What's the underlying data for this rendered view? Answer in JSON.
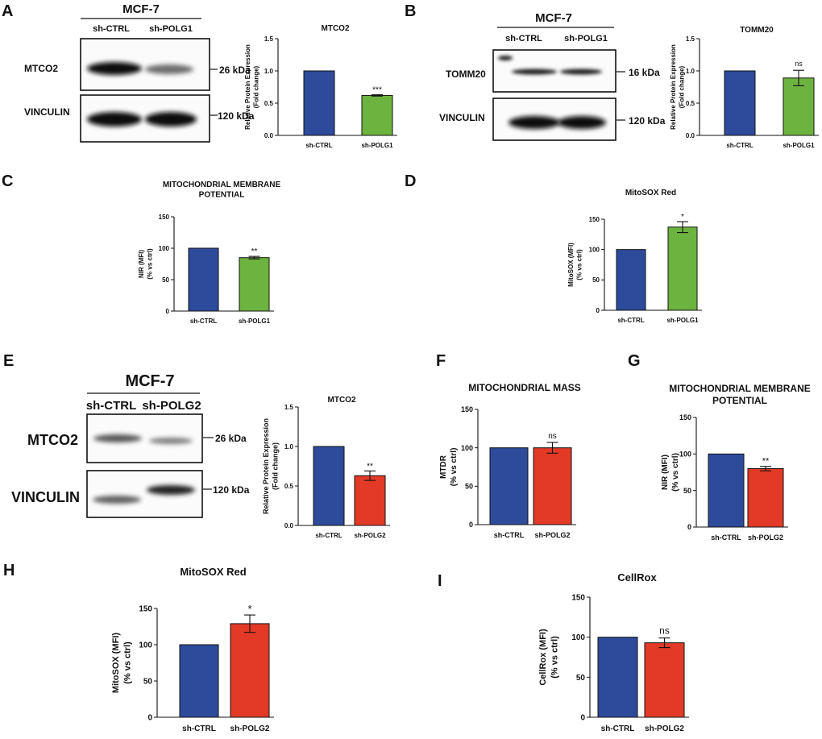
{
  "panels": {
    "A": {
      "letter": "A",
      "blot": {
        "cell_line": "MCF-7",
        "lanes": [
          "sh-CTRL",
          "sh-POLG1"
        ],
        "rows": [
          {
            "protein": "MTCO2",
            "size": "26 kDa"
          },
          {
            "protein": "VINCULIN",
            "size": "120 kDa"
          }
        ]
      }
    },
    "B": {
      "letter": "B",
      "blot": {
        "cell_line": "MCF-7",
        "lanes": [
          "sh-CTRL",
          "sh-POLG1"
        ],
        "rows": [
          {
            "protein": "TOMM20",
            "size": "16 kDa"
          },
          {
            "protein": "VINCULIN",
            "size": "120 kDa"
          }
        ]
      }
    },
    "C": {
      "letter": "C"
    },
    "D": {
      "letter": "D"
    },
    "E": {
      "letter": "E",
      "blot": {
        "cell_line": "MCF-7",
        "lanes": [
          "sh-CTRL",
          "sh-POLG2"
        ],
        "rows": [
          {
            "protein": "MTCO2",
            "size": "26 kDa"
          },
          {
            "protein": "VINCULIN",
            "size": "120 kDa"
          }
        ]
      }
    },
    "F": {
      "letter": "F"
    },
    "G": {
      "letter": "G"
    },
    "H": {
      "letter": "H"
    },
    "I": {
      "letter": "I"
    }
  },
  "colors": {
    "ctrl": "#2E4B9B",
    "polg1": "#6DB33F",
    "polg2": "#E23A26",
    "edge": "#111111"
  },
  "chart_data": [
    {
      "id": "A",
      "type": "bar",
      "title": "MTCO2",
      "ylabel": "Relative Protein Expression\n(Fold change)",
      "categories": [
        "sh-CTRL",
        "sh-POLG1"
      ],
      "values": [
        1.0,
        0.62
      ],
      "errors": [
        0,
        0.01
      ],
      "significance": [
        "",
        "***"
      ],
      "ylim": [
        0,
        1.5
      ],
      "yticks": [
        0.0,
        0.5,
        1.0,
        1.5
      ],
      "tick_labels": [
        "0.0",
        "0.5",
        "1.0",
        "1.5"
      ]
    },
    {
      "id": "B",
      "type": "bar",
      "title": "TOMM20",
      "ylabel": "Relative Protein Expression\n(Fold change)",
      "categories": [
        "sh-CTRL",
        "sh-POLG1"
      ],
      "values": [
        1.0,
        0.89
      ],
      "errors": [
        0,
        0.12
      ],
      "significance": [
        "",
        "ns"
      ],
      "ylim": [
        0,
        1.5
      ],
      "yticks": [
        0.0,
        0.5,
        1.0,
        1.5
      ],
      "tick_labels": [
        "0.0",
        "0.5",
        "1.0",
        "1.5"
      ]
    },
    {
      "id": "C",
      "type": "bar",
      "title": "MITOCHONDRIAL MEMBRANE\nPOTENTIAL",
      "ylabel": "NIR (MFI)\n(% vs ctrl)",
      "categories": [
        "sh-CTRL",
        "sh-POLG1"
      ],
      "values": [
        100,
        85
      ],
      "errors": [
        0,
        2
      ],
      "significance": [
        "",
        "**"
      ],
      "ylim": [
        0,
        150
      ],
      "yticks": [
        0,
        50,
        100,
        150
      ],
      "tick_labels": [
        "0",
        "50",
        "100",
        "150"
      ]
    },
    {
      "id": "D",
      "type": "bar",
      "title": "MitoSOX Red",
      "ylabel": "MitoSOX (MFI)\n(% vs ctrl)",
      "categories": [
        "sh-CTRL",
        "sh-POLG1"
      ],
      "values": [
        100,
        137
      ],
      "errors": [
        0,
        9
      ],
      "significance": [
        "",
        "*"
      ],
      "ylim": [
        0,
        150
      ],
      "yticks": [
        0,
        50,
        100,
        150
      ],
      "tick_labels": [
        "0",
        "50",
        "100",
        "150"
      ]
    },
    {
      "id": "E",
      "type": "bar",
      "title": "MTCO2",
      "ylabel": "Relative Protein Expression\n(Fold change)",
      "categories": [
        "sh-CTRL",
        "sh-POLG2"
      ],
      "values": [
        1.0,
        0.63
      ],
      "errors": [
        0,
        0.06
      ],
      "significance": [
        "",
        "**"
      ],
      "ylim": [
        0,
        1.5
      ],
      "yticks": [
        0.0,
        0.5,
        1.0,
        1.5
      ],
      "tick_labels": [
        "0.0",
        "0.5",
        "1.0",
        "1.5"
      ]
    },
    {
      "id": "F",
      "type": "bar",
      "title": "MITOCHONDRIAL MASS",
      "ylabel": "MTDR\n(% vs ctrl)",
      "categories": [
        "sh-CTRL",
        "sh-POLG2"
      ],
      "values": [
        100,
        100
      ],
      "errors": [
        0,
        7
      ],
      "significance": [
        "",
        "ns"
      ],
      "ylim": [
        0,
        150
      ],
      "yticks": [
        0,
        50,
        100,
        150
      ],
      "tick_labels": [
        "0",
        "50",
        "100",
        "150"
      ]
    },
    {
      "id": "G",
      "type": "bar",
      "title": "MITOCHONDRIAL MEMBRANE\nPOTENTIAL",
      "ylabel": "NIR (MFI)\n(% vs ctrl)",
      "categories": [
        "sh-CTRL",
        "sh-POLG2"
      ],
      "values": [
        100,
        80
      ],
      "errors": [
        0,
        3
      ],
      "significance": [
        "",
        "**"
      ],
      "ylim": [
        0,
        150
      ],
      "yticks": [
        0,
        50,
        100,
        150
      ],
      "tick_labels": [
        "0",
        "50",
        "100",
        "150"
      ]
    },
    {
      "id": "H",
      "type": "bar",
      "title": "MitoSOX Red",
      "ylabel": "MitoSOX (MFI)\n(% vs ctrl)",
      "categories": [
        "sh-CTRL",
        "sh-POLG2"
      ],
      "values": [
        100,
        129
      ],
      "errors": [
        0,
        12
      ],
      "significance": [
        "",
        "*"
      ],
      "ylim": [
        0,
        150
      ],
      "yticks": [
        0,
        50,
        100,
        150
      ],
      "tick_labels": [
        "0",
        "50",
        "100",
        "150"
      ]
    },
    {
      "id": "I",
      "type": "bar",
      "title": "CellRox",
      "ylabel": "CellRox (MFI)\n(% vs ctrl)",
      "categories": [
        "sh-CTRL",
        "sh-POLG2"
      ],
      "values": [
        100,
        93
      ],
      "errors": [
        0,
        6
      ],
      "significance": [
        "",
        "ns"
      ],
      "ylim": [
        0,
        150
      ],
      "yticks": [
        0,
        50,
        100,
        150
      ],
      "tick_labels": [
        "0",
        "50",
        "100",
        "150"
      ]
    }
  ]
}
